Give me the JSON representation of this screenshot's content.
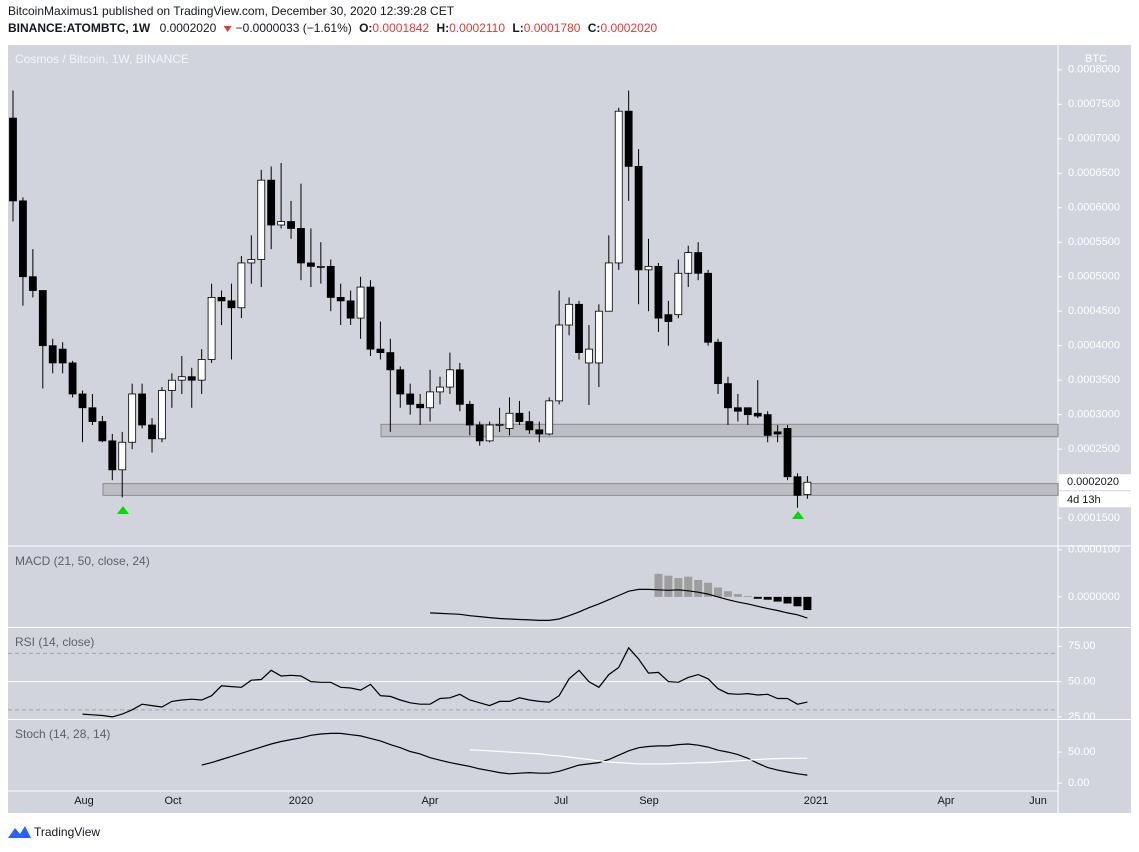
{
  "header": {
    "publisher_line": "BitcoinMaximus1 published on TradingView.com, December 30, 2020 12:39:28 CET",
    "symbol": "BINANCE:ATOMBTC, 1W",
    "last": "0.0002020",
    "change": "−0.0000033 (−1.61%)",
    "ohlc_labels": [
      "O:",
      "H:",
      "L:",
      "C:"
    ],
    "ohlc_values": [
      "0.0001842",
      "0.0002110",
      "0.0001780",
      "0.0002020"
    ]
  },
  "footer": {
    "brand": "TradingView"
  },
  "time_axis": [
    "Aug",
    "Oct",
    "2020",
    "Apr",
    "Jul",
    "Sep",
    "2021",
    "Apr",
    "Jun"
  ],
  "chart_data": [
    {
      "type": "candlestick",
      "title": "Cosmos / Bitcoin, 1W, BINANCE",
      "y_axis_label": "BTC",
      "up_color": "#ffffff",
      "down_color": "#000000",
      "open": [
        0.00073,
        0.00061,
        0.0005,
        0.00048,
        0.0004,
        0.000395,
        0.000375,
        0.00033,
        0.00031,
        0.00029,
        0.000262,
        0.00022,
        0.00026,
        0.00033,
        0.000285,
        0.000265,
        0.000335,
        0.00035,
        0.000355,
        0.00035,
        0.00038,
        0.00047,
        0.000465,
        0.000455,
        0.00052,
        0.000525,
        0.00064,
        0.000575,
        0.00058,
        0.00057,
        0.00052,
        0.000515,
        0.000515,
        0.00047,
        0.000465,
        0.00044,
        0.000485,
        0.000395,
        0.00039,
        0.000365,
        0.00033,
        0.000315,
        0.00031,
        0.000333,
        0.00034,
        0.000365,
        0.000315,
        0.000285,
        0.000262,
        0.000285,
        0.00028,
        0.000302,
        0.00029,
        0.000278,
        0.000272,
        0.00032,
        0.00043,
        0.00046,
        0.000375,
        0.000375,
        0.00045,
        0.00052,
        0.00074,
        0.00066,
        0.00051,
        0.000515,
        0.000445,
        0.000445,
        0.000505,
        0.000535,
        0.000505,
        0.000405,
        0.000345,
        0.00031,
        0.00031,
        0.000302,
        0.0003,
        0.000275,
        0.00028,
        0.00021,
        0.0001842
      ],
      "high": [
        0.00077,
        0.000615,
        0.00054,
        0.000477,
        0.00041,
        0.000405,
        0.000378,
        0.000335,
        0.00033,
        0.000298,
        0.000272,
        0.000275,
        0.000345,
        0.000345,
        0.000295,
        0.00034,
        0.00036,
        0.000385,
        0.000368,
        0.000395,
        0.00049,
        0.00048,
        0.00049,
        0.00053,
        0.00056,
        0.000655,
        0.00066,
        0.000665,
        0.00061,
        0.000635,
        0.00057,
        0.00055,
        0.000525,
        0.00049,
        0.00048,
        0.0005,
        0.000495,
        0.000435,
        0.00041,
        0.00037,
        0.000345,
        0.00033,
        0.000365,
        0.000355,
        0.00039,
        0.000375,
        0.00032,
        0.00029,
        0.00029,
        0.00031,
        0.000325,
        0.00032,
        0.000305,
        0.00029,
        0.000325,
        0.00048,
        0.00047,
        0.000465,
        0.00043,
        0.00046,
        0.00056,
        0.000745,
        0.00077,
        0.000685,
        0.000555,
        0.00052,
        0.000465,
        0.000525,
        0.000545,
        0.00055,
        0.00051,
        0.00041,
        0.000355,
        0.00033,
        0.00031,
        0.00035,
        0.000305,
        0.000285,
        0.000285,
        0.000215,
        0.000211
      ],
      "low": [
        0.00058,
        0.000458,
        0.00047,
        0.000338,
        0.00036,
        0.00036,
        0.000325,
        0.00026,
        0.000285,
        0.00026,
        0.000205,
        0.00018,
        0.00025,
        0.00028,
        0.000245,
        0.00026,
        0.00031,
        0.00033,
        0.00031,
        0.00033,
        0.000375,
        0.00043,
        0.00038,
        0.00044,
        0.00049,
        0.000485,
        0.00054,
        0.00057,
        0.000555,
        0.000495,
        0.000485,
        0.00049,
        0.00045,
        0.00043,
        0.00043,
        0.00041,
        0.000385,
        0.00038,
        0.000275,
        0.00031,
        0.0003,
        0.000285,
        0.00029,
        0.000315,
        0.00033,
        0.000305,
        0.00027,
        0.000255,
        0.00026,
        0.000275,
        0.00027,
        0.000285,
        0.000272,
        0.00026,
        0.00027,
        0.000315,
        0.000415,
        0.00038,
        0.000314,
        0.00034,
        0.00045,
        0.00051,
        0.00061,
        0.00046,
        0.00045,
        0.00042,
        0.0004,
        0.00044,
        0.000485,
        0.000495,
        0.0004,
        0.00033,
        0.000285,
        0.00029,
        0.000285,
        0.000295,
        0.00026,
        0.00026,
        0.000205,
        0.000165,
        0.000178
      ],
      "close": [
        0.00061,
        0.0005,
        0.00048,
        0.0004,
        0.000375,
        0.000375,
        0.00033,
        0.00031,
        0.00029,
        0.000262,
        0.00022,
        0.00026,
        0.00033,
        0.000285,
        0.000265,
        0.000335,
        0.00035,
        0.000355,
        0.00035,
        0.00038,
        0.00047,
        0.000465,
        0.000455,
        0.00052,
        0.000525,
        0.00064,
        0.000575,
        0.00058,
        0.00057,
        0.00052,
        0.000515,
        0.000515,
        0.00047,
        0.000465,
        0.00044,
        0.000485,
        0.000395,
        0.00039,
        0.000365,
        0.00033,
        0.000315,
        0.00031,
        0.000333,
        0.00034,
        0.000365,
        0.000315,
        0.000285,
        0.000262,
        0.000285,
        0.000286,
        0.000302,
        0.00029,
        0.000278,
        0.000272,
        0.00032,
        0.00043,
        0.00046,
        0.00039,
        0.000395,
        0.00045,
        0.00052,
        0.00074,
        0.00066,
        0.00051,
        0.000515,
        0.00044,
        0.000435,
        0.000505,
        0.000535,
        0.000505,
        0.000405,
        0.000345,
        0.00031,
        0.000305,
        0.0003,
        0.000298,
        0.00027,
        0.000272,
        0.00021,
        0.000183,
        0.000202
      ],
      "zones": [
        [
          0.000183,
          0.0002
        ],
        [
          0.000268,
          0.000286
        ]
      ],
      "last_price": {
        "value": 0.000202,
        "label": "0.0002020"
      },
      "countdown": "4d 13h",
      "ylim": [
        0.000111,
        0.000836
      ],
      "yticks": [
        {
          "value": 0.0008,
          "label": "0.0008000"
        },
        {
          "value": 0.00075,
          "label": "0.0007500"
        },
        {
          "value": 0.0007,
          "label": "0.0007000"
        },
        {
          "value": 0.00065,
          "label": "0.0006500"
        },
        {
          "value": 0.0006,
          "label": "0.0006000"
        },
        {
          "value": 0.00055,
          "label": "0.0005500"
        },
        {
          "value": 0.0005,
          "label": "0.0005000"
        },
        {
          "value": 0.00045,
          "label": "0.0004500"
        },
        {
          "value": 0.0004,
          "label": "0.0004000"
        },
        {
          "value": 0.00035,
          "label": "0.0003500"
        },
        {
          "value": 0.0003,
          "label": "0.0003000"
        },
        {
          "value": 0.00025,
          "label": "0.0002500"
        },
        {
          "value": 0.00015,
          "label": "0.0001500"
        }
      ]
    },
    {
      "type": "macd",
      "title": "MACD (21, 50, close, 24)",
      "line_color": "#000000",
      "hist_up_color": "#9e9e9e",
      "hist_down_color": "#000000",
      "macd": [
        null,
        null,
        null,
        null,
        null,
        null,
        null,
        null,
        null,
        null,
        null,
        null,
        null,
        null,
        null,
        null,
        null,
        null,
        null,
        null,
        null,
        null,
        null,
        null,
        null,
        null,
        null,
        null,
        null,
        null,
        null,
        null,
        null,
        null,
        null,
        null,
        null,
        null,
        null,
        null,
        null,
        null,
        -3.4e-06,
        -3.5e-06,
        -3.6e-06,
        -3.7e-06,
        -4e-06,
        -4.2e-06,
        -4.4e-06,
        -4.6e-06,
        -4.7e-06,
        -4.8e-06,
        -4.9e-06,
        -5e-06,
        -5e-06,
        -4.7e-06,
        -4e-06,
        -3.2e-06,
        -2.3e-06,
        -1.5e-06,
        -6e-07,
        3e-07,
        1.2e-06,
        1.6e-06,
        1.6e-06,
        1.5e-06,
        1.4e-06,
        1.5e-06,
        1.3e-06,
        1e-06,
        6e-07,
        0,
        -6e-07,
        -1.1e-06,
        -1.5e-06,
        -2e-06,
        -2.5e-06,
        -2.9e-06,
        -3.4e-06,
        -3.8e-06,
        -4.5e-06
      ],
      "histogram": [
        null,
        null,
        null,
        null,
        null,
        null,
        null,
        null,
        null,
        null,
        null,
        null,
        null,
        null,
        null,
        null,
        null,
        null,
        null,
        null,
        null,
        null,
        null,
        null,
        null,
        null,
        null,
        null,
        null,
        null,
        null,
        null,
        null,
        null,
        null,
        null,
        null,
        null,
        null,
        null,
        null,
        null,
        null,
        null,
        null,
        null,
        null,
        null,
        null,
        null,
        null,
        null,
        null,
        null,
        null,
        null,
        null,
        null,
        null,
        null,
        null,
        null,
        null,
        null,
        null,
        4.9e-06,
        4.5e-06,
        4e-06,
        4.3e-06,
        3.6e-06,
        3e-06,
        2e-06,
        1.2e-06,
        6e-07,
        2e-07,
        -4e-07,
        -6e-07,
        -1e-06,
        -1.4e-06,
        -2e-06,
        -2.8e-06
      ],
      "ylim": [
        -6.4e-06,
        1.06e-05
      ],
      "yticks": [
        {
          "value": 1e-05,
          "label": "0.0000100"
        },
        {
          "value": 0,
          "label": "0.0000000"
        }
      ]
    },
    {
      "type": "line",
      "title": "RSI (14, close)",
      "bands": [
        30,
        70
      ],
      "series": [
        {
          "color": "#000000",
          "values": [
            null,
            null,
            null,
            null,
            null,
            null,
            null,
            27,
            26.5,
            26,
            25,
            27,
            30,
            34,
            33,
            32,
            36,
            37,
            37.5,
            37,
            40,
            47,
            46.5,
            46,
            51,
            51.5,
            58,
            54,
            54.5,
            54,
            50,
            49.5,
            49.5,
            46,
            45.5,
            44,
            48,
            40,
            39.5,
            37,
            35,
            34,
            34,
            38,
            38.5,
            41,
            37,
            35,
            33,
            36,
            36,
            38.5,
            37,
            36,
            35.5,
            40,
            52,
            58,
            50,
            46,
            55,
            60,
            74,
            66,
            56,
            56.5,
            50,
            49.5,
            53,
            55,
            52,
            45,
            41.5,
            41,
            41.5,
            40.5,
            41,
            38,
            38,
            34,
            35.5
          ]
        }
      ],
      "ylim": [
        23.5,
        88
      ],
      "yticks": [
        {
          "value": 75,
          "label": "75.00"
        },
        {
          "value": 50,
          "label": "50.00"
        },
        {
          "value": 25,
          "label": "25.00"
        }
      ]
    },
    {
      "type": "line",
      "title": "Stoch (14, 28, 14)",
      "series": [
        {
          "color": "#000000",
          "values": [
            null,
            null,
            null,
            null,
            null,
            null,
            null,
            null,
            null,
            null,
            null,
            null,
            null,
            null,
            null,
            null,
            null,
            null,
            null,
            29,
            33,
            38,
            43,
            48,
            53,
            58,
            63,
            67,
            70,
            73,
            77,
            79,
            80,
            80,
            78,
            76,
            72,
            68,
            62,
            57,
            51,
            47,
            41,
            37,
            33,
            30,
            27,
            23,
            20,
            17,
            15,
            16,
            17,
            16,
            16,
            19,
            24,
            29,
            31,
            33,
            38,
            45,
            52,
            57,
            59,
            60,
            60,
            62,
            63,
            61,
            58,
            53,
            50,
            46,
            40,
            32,
            25,
            21,
            18,
            15,
            13
          ]
        },
        {
          "color": "#ffffff",
          "values": [
            null,
            null,
            null,
            null,
            null,
            null,
            null,
            null,
            null,
            null,
            null,
            null,
            null,
            null,
            null,
            null,
            null,
            null,
            null,
            null,
            null,
            null,
            null,
            null,
            null,
            null,
            null,
            null,
            null,
            null,
            null,
            null,
            null,
            null,
            null,
            null,
            null,
            null,
            null,
            null,
            null,
            null,
            null,
            null,
            null,
            null,
            53.5,
            53,
            52,
            51,
            50,
            49,
            48,
            47,
            45,
            44,
            42,
            40,
            38,
            36,
            34,
            33,
            32,
            31,
            31,
            31,
            31,
            32,
            32,
            33,
            33,
            34,
            35,
            36,
            37,
            38,
            39,
            39.5,
            40,
            40,
            40
          ]
        }
      ],
      "ylim": [
        -11,
        101.6
      ],
      "yticks": [
        {
          "value": 50,
          "label": "50.00"
        },
        {
          "value": 0,
          "label": "0.00"
        }
      ]
    }
  ]
}
